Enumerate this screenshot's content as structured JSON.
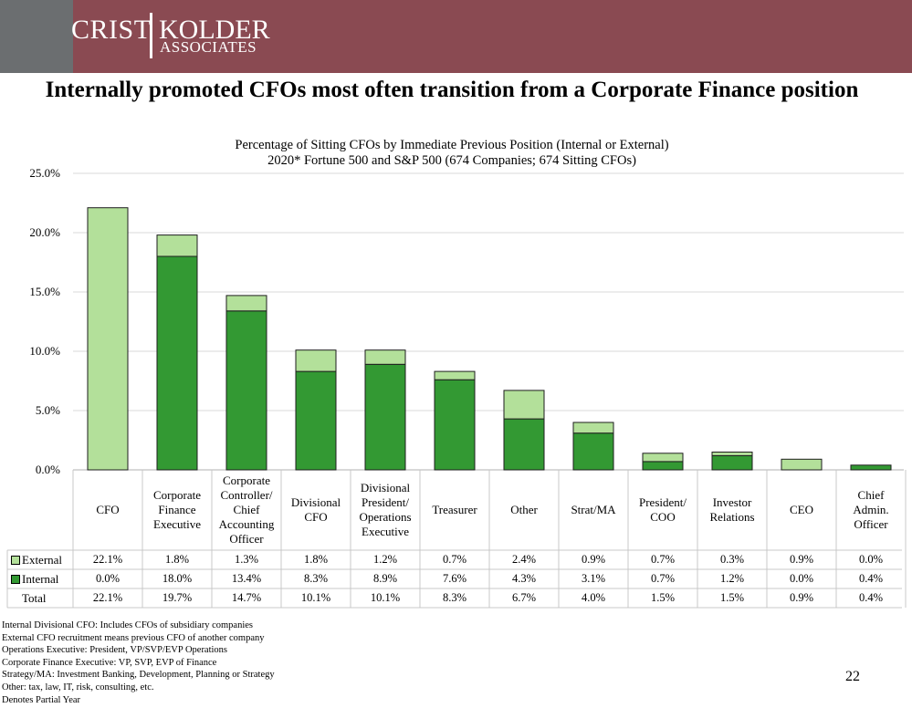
{
  "header": {
    "brand_left": "CRIST",
    "brand_right": "KOLDER",
    "brand_sub": "ASSOCIATES",
    "colors": {
      "left_block": "#6b6e70",
      "band": "#8a4a52"
    }
  },
  "page": {
    "title": "Internally promoted CFOs most often transition from a Corporate Finance position",
    "subtitle_line1": "Percentage of Sitting CFOs by Immediate Previous Position (Internal or External)",
    "subtitle_line2": "2020* Fortune 500 and S&P 500 (674 Companies; 674 Sitting CFOs)",
    "page_number": "22"
  },
  "chart_data": {
    "type": "bar",
    "stacked": true,
    "categories": [
      "CFO",
      "Corporate Finance Executive",
      "Corporate Controller/ Chief Accounting Officer",
      "Divisional CFO",
      "Divisional President/ Operations Executive",
      "Treasurer",
      "Other",
      "Strat/MA",
      "President/ COO",
      "Investor Relations",
      "CEO",
      "Chief Admin. Officer"
    ],
    "category_lines": [
      [
        "CFO"
      ],
      [
        "Corporate",
        "Finance",
        "Executive"
      ],
      [
        "Corporate",
        "Controller/",
        "Chief",
        "Accounting",
        "Officer"
      ],
      [
        "Divisional",
        "CFO"
      ],
      [
        "Divisional",
        "President/",
        "Operations",
        "Executive"
      ],
      [
        "Treasurer"
      ],
      [
        "Other"
      ],
      [
        "Strat/MA"
      ],
      [
        "President/",
        "COO"
      ],
      [
        "Investor",
        "Relations"
      ],
      [
        "CEO"
      ],
      [
        "Chief",
        "Admin.",
        "Officer"
      ]
    ],
    "series": [
      {
        "name": "Internal",
        "color": "#339933",
        "values": [
          0.0,
          18.0,
          13.4,
          8.3,
          8.9,
          7.6,
          4.3,
          3.1,
          0.7,
          1.2,
          0.0,
          0.4
        ],
        "labels": [
          "0.0%",
          "18.0%",
          "13.4%",
          "8.3%",
          "8.9%",
          "7.6%",
          "4.3%",
          "3.1%",
          "0.7%",
          "1.2%",
          "0.0%",
          "0.4%"
        ]
      },
      {
        "name": "External",
        "color": "#b3e09a",
        "values": [
          22.1,
          1.8,
          1.3,
          1.8,
          1.2,
          0.7,
          2.4,
          0.9,
          0.7,
          0.3,
          0.9,
          0.0
        ],
        "labels": [
          "22.1%",
          "1.8%",
          "1.3%",
          "1.8%",
          "1.2%",
          "0.7%",
          "2.4%",
          "0.9%",
          "0.7%",
          "0.3%",
          "0.9%",
          "0.0%"
        ]
      }
    ],
    "totals": [
      "22.1%",
      "19.7%",
      "14.7%",
      "10.1%",
      "10.1%",
      "8.3%",
      "6.7%",
      "4.0%",
      "1.5%",
      "1.5%",
      "0.9%",
      "0.4%"
    ],
    "total_label": "Total",
    "yticks": [
      0,
      5,
      10,
      15,
      20,
      25
    ],
    "ytick_labels": [
      "0.0%",
      "5.0%",
      "10.0%",
      "15.0%",
      "20.0%",
      "25.0%"
    ],
    "ylim": [
      0,
      25
    ],
    "grid": true,
    "legend": "data table rows"
  },
  "notes": [
    "Internal Divisional CFO: Includes CFOs of subsidiary companies",
    "External CFO recruitment means previous CFO of another company",
    "Operations Executive: President, VP/SVP/EVP Operations",
    "Corporate Finance Executive: VP, SVP, EVP of Finance",
    "Strategy/MA: Investment Banking, Development, Planning or Strategy",
    "Other: tax, law, IT, risk, consulting, etc.",
    "Denotes Partial Year"
  ]
}
